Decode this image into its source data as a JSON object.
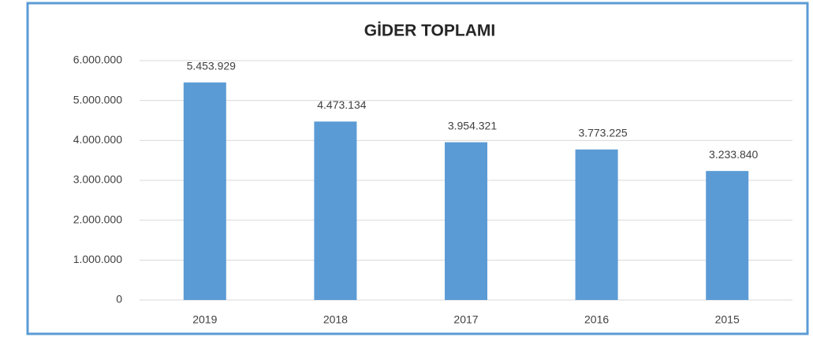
{
  "chart_data": {
    "type": "bar",
    "title": "GİDER TOPLAMI",
    "categories": [
      "2019",
      "2018",
      "2017",
      "2016",
      "2015"
    ],
    "values": [
      5453929,
      4473134,
      3954321,
      3773225,
      3233840
    ],
    "value_labels": [
      "5.453.929",
      "4.473.134",
      "3.954.321",
      "3.773.225",
      "3.233.840"
    ],
    "color": "#5b9bd5",
    "ylim": [
      0,
      6000000
    ],
    "yticks": [
      0,
      {
        "value": 1000000,
        "label": "1.000.000"
      },
      {
        "value": 2000000,
        "label": "2.000.000"
      },
      {
        "value": 3000000,
        "label": "3.000.000"
      },
      {
        "value": 4000000,
        "label": "4.000.000"
      },
      {
        "value": 5000000,
        "label": "5.000.000"
      },
      {
        "value": 6000000,
        "label": "6.000.000"
      }
    ],
    "grid": true
  }
}
